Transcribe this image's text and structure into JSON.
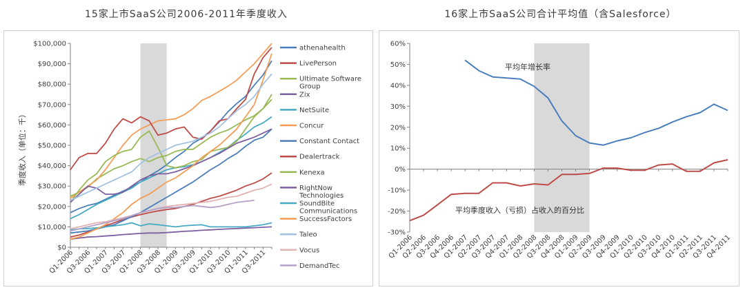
{
  "chart_data": [
    {
      "type": "line",
      "title": "15家上市SaaS公司2006-2011年季度收入",
      "ylabel": "季度收入（单位：千）",
      "xlabel": "",
      "ylim": [
        0,
        100000
      ],
      "yticks": [
        "$0",
        "$10,000",
        "$20,000",
        "$30,000",
        "$40,000",
        "$50,000",
        "$60,000",
        "$70,000",
        "$80,000",
        "$90,000",
        "$100,000"
      ],
      "categories": [
        "Q1-2006",
        "Q2-2006",
        "Q3-2006",
        "Q4-2006",
        "Q1-2007",
        "Q2-2007",
        "Q3-2007",
        "Q4-2007",
        "Q1-2008",
        "Q2-2008",
        "Q3-2008",
        "Q4-2008",
        "Q1-2009",
        "Q2-2009",
        "Q3-2009",
        "Q4-2009",
        "Q1-2010",
        "Q2-2010",
        "Q3-2010",
        "Q4-2010",
        "Q1-2011",
        "Q2-2011",
        "Q3-2011",
        "Q4-2011"
      ],
      "xticks": [
        "Q1-2006",
        "Q3-2006",
        "Q1-2007",
        "Q3-2007",
        "Q1-2008",
        "Q3-2008",
        "Q1-2009",
        "Q3-2009",
        "Q1-2010",
        "Q3-2010",
        "Q1-2011",
        "Q3-2011"
      ],
      "shaded_range": [
        "Q1-2008",
        "Q4-2008"
      ],
      "series": [
        {
          "name": "athenahealth",
          "color": "#4a7ebb",
          "values": [
            17000,
            19000,
            20500,
            21500,
            23500,
            25500,
            27500,
            29500,
            32000,
            35000,
            37500,
            40500,
            44000,
            47000,
            51000,
            53500,
            57000,
            61500,
            66500,
            70500,
            74000,
            79500,
            84500,
            91500
          ]
        },
        {
          "name": "LivePerson",
          "color": "#be4b48",
          "values": [
            5000,
            6000,
            7500,
            9000,
            10500,
            12000,
            13500,
            14800,
            16000,
            17000,
            17800,
            18500,
            19000,
            20000,
            21000,
            22500,
            24000,
            25000,
            26500,
            28000,
            30000,
            31500,
            33500,
            36500
          ]
        },
        {
          "name": "Ultimate Software Group",
          "color": "#98b954",
          "values": [
            25000,
            27000,
            29500,
            33500,
            36000,
            38500,
            40000,
            42000,
            43500,
            42000,
            44000,
            45000,
            47000,
            48000,
            48000,
            51000,
            54000,
            56000,
            57500,
            60000,
            62500,
            64500,
            68000,
            72500
          ]
        },
        {
          "name": "Zix",
          "color": "#7d60a0",
          "values": [
            4000,
            4500,
            5000,
            5200,
            5500,
            5800,
            6200,
            6500,
            6800,
            7000,
            7000,
            7200,
            7500,
            7800,
            8000,
            8300,
            8500,
            8800,
            9000,
            9200,
            9400,
            9600,
            9800,
            10000
          ]
        },
        {
          "name": "NetSuite",
          "color": "#46aac4",
          "values": [
            14000,
            16000,
            18500,
            21000,
            23000,
            25000,
            27000,
            29000,
            32000,
            34000,
            36000,
            38000,
            39000,
            39500,
            40500,
            42000,
            44000,
            46500,
            49000,
            52500,
            55500,
            59000,
            61000,
            64000
          ]
        },
        {
          "name": "Concur",
          "color": "#f59d56",
          "values": [
            24000,
            27000,
            30000,
            33000,
            38000,
            44000,
            50000,
            55000,
            58000,
            60000,
            62000,
            62500,
            63000,
            65000,
            68000,
            72000,
            74000,
            76500,
            79000,
            82000,
            86000,
            90000,
            95000,
            100000
          ]
        },
        {
          "name": "Constant Contact",
          "color": "#4a7ebb",
          "values": [
            7000,
            7500,
            8000,
            9000,
            10000,
            11000,
            13000,
            15000,
            17000,
            19500,
            22000,
            24500,
            27000,
            29500,
            32000,
            35000,
            38000,
            40500,
            43500,
            46000,
            49500,
            52500,
            54000,
            58000
          ]
        },
        {
          "name": "Dealertrack",
          "color": "#be4b48",
          "values": [
            38000,
            44000,
            46000,
            46000,
            51000,
            58000,
            63000,
            61000,
            64000,
            62000,
            55000,
            56000,
            58000,
            59000,
            54000,
            53000,
            57000,
            62000,
            63000,
            68000,
            72500,
            85000,
            93000,
            98000
          ]
        },
        {
          "name": "Kenexa",
          "color": "#98b954",
          "values": [
            22000,
            28000,
            33000,
            36000,
            42000,
            45000,
            47000,
            48000,
            54000,
            57000,
            49000,
            40000,
            39000,
            40000,
            42000,
            43000,
            47000,
            48000,
            49000,
            52000,
            58000,
            64000,
            68000,
            75000
          ]
        },
        {
          "name": "RightNow Technologies",
          "color": "#7d60a0",
          "values": [
            22000,
            26000,
            30000,
            29000,
            26000,
            26000,
            27000,
            30000,
            33000,
            35000,
            36000,
            36000,
            37000,
            38500,
            40000,
            42000,
            44000,
            46000,
            48500,
            51000,
            52500,
            54000,
            56000,
            58000
          ]
        },
        {
          "name": "SoundBite Communications",
          "color": "#46aac4",
          "values": [
            8500,
            9000,
            9200,
            9500,
            10000,
            10500,
            11000,
            12000,
            10500,
            11500,
            11000,
            10500,
            10000,
            10500,
            10800,
            11000,
            10000,
            10000,
            10000,
            10000,
            10000,
            10500,
            11000,
            12000
          ]
        },
        {
          "name": "SuccessFactors",
          "color": "#f59d56",
          "values": [
            4000,
            5000,
            7000,
            9000,
            11000,
            14000,
            17000,
            21000,
            24000,
            26000,
            29000,
            32000,
            34000,
            37000,
            40000,
            44000,
            47000,
            50000,
            54000,
            58000,
            64000,
            70000,
            82000,
            95000
          ]
        },
        {
          "name": "Taleo",
          "color": "#a3c1e0",
          "values": [
            23000,
            25000,
            27000,
            29000,
            31000,
            33000,
            35000,
            37000,
            41000,
            44000,
            46000,
            48000,
            50000,
            51000,
            52000,
            54000,
            56000,
            59000,
            63000,
            67000,
            70000,
            74000,
            80000,
            85000
          ]
        },
        {
          "name": "Vocus",
          "color": "#e2b3b2",
          "values": [
            9000,
            10000,
            11000,
            12000,
            12500,
            13500,
            14500,
            15500,
            17000,
            18000,
            19000,
            20000,
            20500,
            21000,
            21500,
            22000,
            22500,
            23500,
            24500,
            25000,
            26500,
            28000,
            29000,
            31000
          ]
        },
        {
          "name": "DemandTec",
          "color": "#b3a2c7",
          "values": [
            8000,
            9000,
            10000,
            11000,
            12000,
            13000,
            14000,
            15500,
            17000,
            18000,
            19000,
            19500,
            19500,
            20000,
            20500,
            20000,
            19500,
            20000,
            21000,
            22000,
            22500,
            23000,
            null,
            null
          ]
        }
      ]
    },
    {
      "type": "line",
      "title": "16家上市SaaS公司合计平均值（含Salesforce）",
      "ylim": [
        -30,
        60
      ],
      "yticks": [
        "-30%",
        "-20%",
        "-10%",
        "0%",
        "10%",
        "20%",
        "30%",
        "40%",
        "50%",
        "60%"
      ],
      "categories": [
        "Q1-2006",
        "Q2-2006",
        "Q3-2006",
        "Q4-2006",
        "Q1-2007",
        "Q2-2007",
        "Q3-2007",
        "Q4-2007",
        "Q1-2008",
        "Q2-2008",
        "Q3-2008",
        "Q4-2008",
        "Q1-2009",
        "Q2-2009",
        "Q3-2009",
        "Q4-2009",
        "Q1-2010",
        "Q2-2010",
        "Q3-2010",
        "Q4-2010",
        "Q1-2011",
        "Q2-2011",
        "Q3-2011",
        "Q4-2011"
      ],
      "shaded_range": [
        "Q2-2008",
        "Q2-2009"
      ],
      "annotations": [
        "平均年增长率",
        "平均季度收入（亏损）占收入的百分比"
      ],
      "series": [
        {
          "name": "平均年增长率",
          "color": "#4a7ebb",
          "values": [
            null,
            null,
            null,
            null,
            52,
            47,
            44,
            43.5,
            43,
            39.5,
            34,
            23,
            16,
            12.5,
            11.5,
            13.5,
            15,
            17.5,
            19.5,
            22.5,
            25,
            27,
            31,
            28
          ]
        },
        {
          "name": "平均季度收入（亏损）占收入的百分比",
          "color": "#be4b48",
          "values": [
            -24.5,
            -22,
            -17,
            -12,
            -11.5,
            -11.5,
            -6.5,
            -6.5,
            -8,
            -7,
            -7.5,
            -2.5,
            -2.5,
            -2,
            0.5,
            0.5,
            -0.5,
            -0.5,
            2,
            2.5,
            -1,
            -1,
            3,
            4.5
          ]
        }
      ]
    }
  ]
}
